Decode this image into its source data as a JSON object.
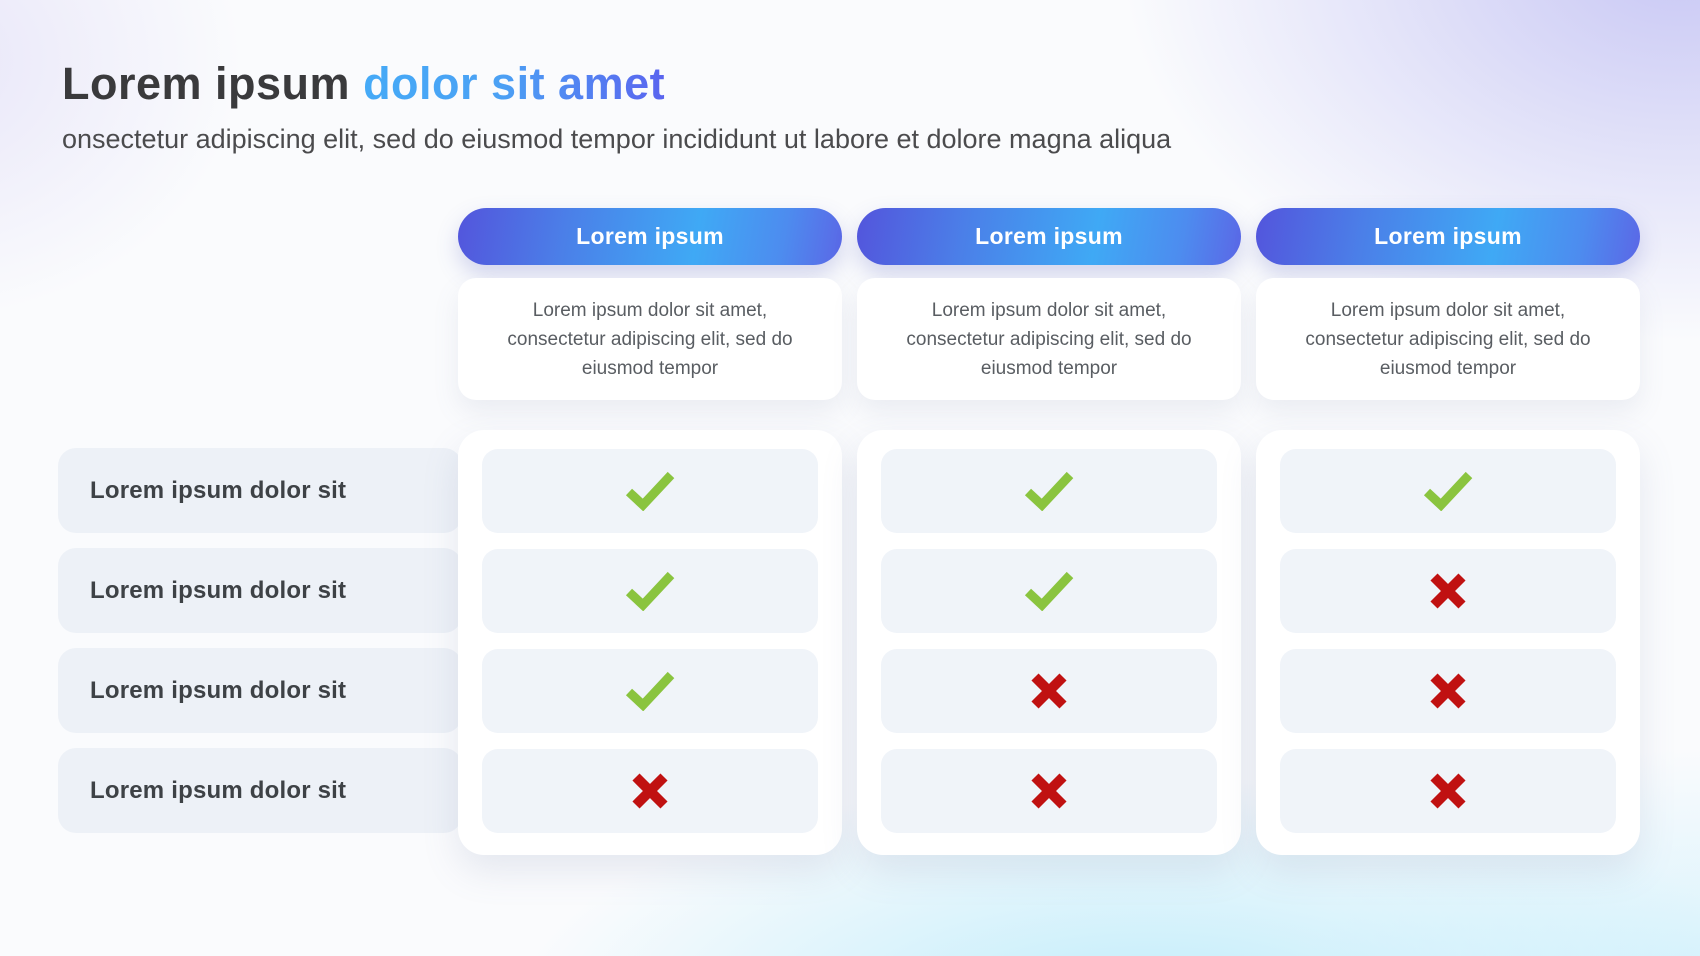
{
  "header": {
    "title_dark": "Lorem ipsum",
    "title_accent": "dolor sit amet",
    "subtitle": "onsectetur adipiscing elit, sed do eiusmod tempor incididunt ut labore et dolore magna aliqua"
  },
  "rows": [
    {
      "label": "Lorem ipsum dolor sit"
    },
    {
      "label": "Lorem ipsum dolor sit"
    },
    {
      "label": "Lorem ipsum dolor sit"
    },
    {
      "label": "Lorem ipsum dolor sit"
    }
  ],
  "columns": [
    {
      "header": "Lorem ipsum",
      "description": "Lorem ipsum dolor sit amet, consectetur adipiscing elit, sed do eiusmod tempor",
      "cells": [
        "check",
        "check",
        "check",
        "cross"
      ]
    },
    {
      "header": "Lorem ipsum",
      "description": "Lorem ipsum dolor sit amet, consectetur adipiscing elit, sed do eiusmod tempor",
      "cells": [
        "check",
        "check",
        "cross",
        "cross"
      ]
    },
    {
      "header": "Lorem ipsum",
      "description": "Lorem ipsum dolor sit amet, consectetur adipiscing elit, sed do eiusmod tempor",
      "cells": [
        "check",
        "cross",
        "cross",
        "cross"
      ]
    }
  ],
  "icons": {
    "check": "check-icon",
    "cross": "cross-icon"
  },
  "colors": {
    "check_green": "#8AC43F",
    "cross_red": "#C01111",
    "accent_gradient_start": "#45AAF7",
    "accent_gradient_end": "#5A64EF",
    "pill_gradient_left": "#5355DC",
    "pill_gradient_mid": "#3FA9F5",
    "pill_gradient_right": "#5B67E6",
    "bg_corner_lavender": "#C6C5F4",
    "bg_corner_cyan": "#CDEFF9"
  }
}
